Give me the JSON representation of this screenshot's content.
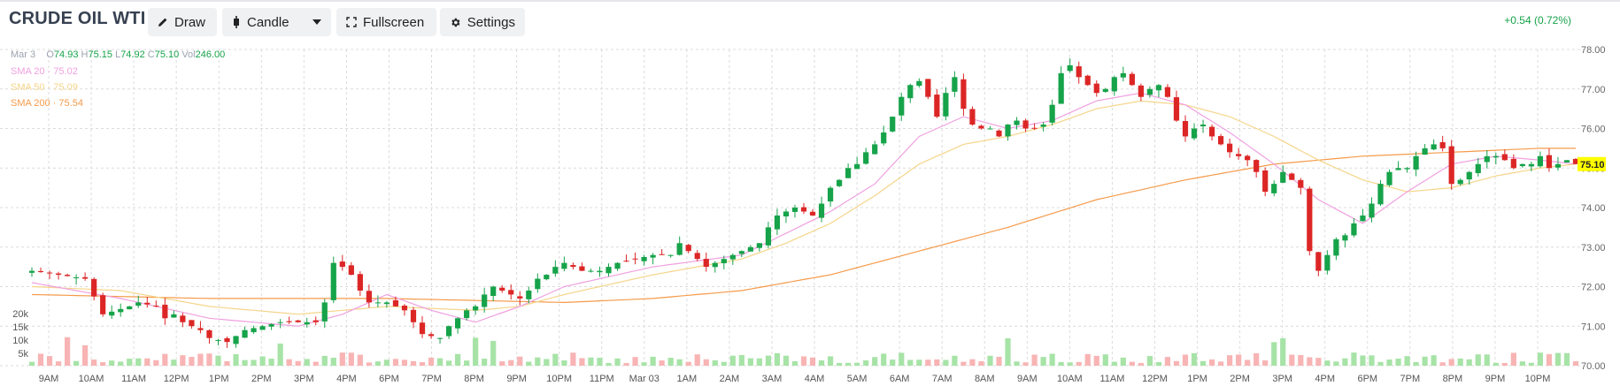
{
  "header": {
    "title": "CRUDE OIL WTI",
    "draw_label": "Draw",
    "candle_label": "Candle",
    "fullscreen_label": "Fullscreen",
    "settings_label": "Settings",
    "change": "+0.54 (0.72%)"
  },
  "legend": {
    "date": "Mar 3",
    "o_label": "O",
    "o": "74.93",
    "h_label": "H",
    "h": "75.15",
    "l_label": "L",
    "l": "74.92",
    "c_label": "C",
    "c": "75.10",
    "vol_label": "Vol",
    "vol": "246.00",
    "sma20": "SMA 20 · 75.02",
    "sma50": "SMA 50 · 75.09",
    "sma200": "SMA 200 · 75.54"
  },
  "colors": {
    "up": "#16a34a",
    "down": "#dc2626",
    "sma20": "#f0a0e0",
    "sma50": "#f5d58a",
    "sma200": "#f59a4a",
    "vol_up": "#a7e3a7",
    "vol_down": "#f8b4b4",
    "last_price_bg": "#ffff00"
  },
  "chart_data": {
    "type": "candlestick",
    "y_ticks": [
      "78.00",
      "77.00",
      "76.00",
      "75.00",
      "74.00",
      "73.00",
      "72.00",
      "71.00",
      "70.00"
    ],
    "ylim": [
      70.0,
      78.0
    ],
    "last_price": "75.10",
    "volume_ticks": [
      "20k",
      "15k",
      "10k",
      "5k"
    ],
    "x_ticks": [
      "9AM",
      "10AM",
      "11AM",
      "12PM",
      "1PM",
      "2PM",
      "3PM",
      "4PM",
      "6PM",
      "7PM",
      "8PM",
      "9PM",
      "10PM",
      "11PM",
      "Mar 03",
      "1AM",
      "2AM",
      "3AM",
      "4AM",
      "5AM",
      "6AM",
      "7AM",
      "8AM",
      "9AM",
      "10AM",
      "11AM",
      "12PM",
      "1PM",
      "2PM",
      "3PM",
      "4PM",
      "6PM",
      "7PM",
      "8PM",
      "9PM",
      "10PM"
    ],
    "close_path": [
      [
        0,
        72.4
      ],
      [
        6,
        72.2
      ],
      [
        8,
        71.3
      ],
      [
        11,
        71.5
      ],
      [
        12,
        71.6
      ],
      [
        14,
        71.5
      ],
      [
        15,
        71.2
      ],
      [
        16,
        71.3
      ],
      [
        17,
        71.1
      ],
      [
        19,
        70.9
      ],
      [
        20,
        70.7
      ],
      [
        22,
        70.6
      ],
      [
        24,
        70.9
      ],
      [
        26,
        71.0
      ],
      [
        28,
        71.1
      ],
      [
        30,
        71.1
      ],
      [
        32,
        71.1
      ],
      [
        33,
        71.6
      ],
      [
        34,
        72.6
      ],
      [
        35,
        72.5
      ],
      [
        36,
        72.3
      ],
      [
        37,
        71.9
      ],
      [
        38,
        71.6
      ],
      [
        40,
        71.6
      ],
      [
        42,
        71.4
      ],
      [
        43,
        71.1
      ],
      [
        44,
        70.8
      ],
      [
        46,
        70.7
      ],
      [
        47,
        71.0
      ],
      [
        48,
        71.2
      ],
      [
        49,
        71.4
      ],
      [
        50,
        71.5
      ],
      [
        51,
        71.8
      ],
      [
        52,
        72.0
      ],
      [
        53,
        71.9
      ],
      [
        54,
        71.8
      ],
      [
        55,
        71.7
      ],
      [
        56,
        71.9
      ],
      [
        57,
        72.2
      ],
      [
        58,
        72.3
      ],
      [
        59,
        72.5
      ],
      [
        60,
        72.6
      ],
      [
        62,
        72.4
      ],
      [
        64,
        72.4
      ],
      [
        66,
        72.6
      ],
      [
        68,
        72.7
      ],
      [
        70,
        72.8
      ],
      [
        72,
        72.8
      ],
      [
        73,
        73.1
      ],
      [
        74,
        72.9
      ],
      [
        75,
        72.7
      ],
      [
        76,
        72.5
      ],
      [
        77,
        72.6
      ],
      [
        78,
        72.7
      ],
      [
        80,
        72.9
      ],
      [
        82,
        73.1
      ],
      [
        83,
        73.5
      ],
      [
        84,
        73.8
      ],
      [
        86,
        74.0
      ],
      [
        87,
        73.9
      ],
      [
        88,
        73.8
      ],
      [
        89,
        74.1
      ],
      [
        90,
        74.5
      ],
      [
        91,
        74.7
      ],
      [
        92,
        75.0
      ],
      [
        93,
        75.1
      ],
      [
        94,
        75.4
      ],
      [
        95,
        75.6
      ],
      [
        96,
        75.9
      ],
      [
        97,
        76.3
      ],
      [
        98,
        76.8
      ],
      [
        99,
        77.1
      ],
      [
        100,
        77.2
      ],
      [
        101,
        76.8
      ],
      [
        102,
        76.3
      ],
      [
        103,
        76.9
      ],
      [
        104,
        77.3
      ],
      [
        105,
        76.5
      ],
      [
        106,
        76.1
      ],
      [
        107,
        76.0
      ],
      [
        108,
        76.0
      ],
      [
        109,
        75.8
      ],
      [
        110,
        76.1
      ],
      [
        111,
        76.2
      ],
      [
        112,
        76.0
      ],
      [
        113,
        76.0
      ],
      [
        114,
        76.1
      ],
      [
        115,
        76.6
      ],
      [
        116,
        77.4
      ],
      [
        117,
        77.6
      ],
      [
        118,
        77.3
      ],
      [
        119,
        77.1
      ],
      [
        120,
        76.9
      ],
      [
        121,
        77.0
      ],
      [
        122,
        77.3
      ],
      [
        123,
        77.4
      ],
      [
        124,
        77.1
      ],
      [
        125,
        76.8
      ],
      [
        126,
        77.0
      ],
      [
        127,
        77.1
      ],
      [
        128,
        76.8
      ],
      [
        129,
        76.2
      ],
      [
        130,
        75.8
      ],
      [
        131,
        76.0
      ],
      [
        132,
        76.1
      ],
      [
        133,
        75.8
      ],
      [
        134,
        75.6
      ],
      [
        135,
        75.4
      ],
      [
        136,
        75.3
      ],
      [
        137,
        75.2
      ],
      [
        138,
        74.9
      ],
      [
        139,
        74.4
      ],
      [
        140,
        74.6
      ],
      [
        141,
        74.9
      ],
      [
        142,
        74.7
      ],
      [
        143,
        74.5
      ],
      [
        144,
        72.9
      ],
      [
        145,
        72.4
      ],
      [
        146,
        72.8
      ],
      [
        147,
        73.2
      ],
      [
        148,
        73.3
      ],
      [
        149,
        73.6
      ],
      [
        150,
        73.8
      ],
      [
        151,
        74.1
      ],
      [
        152,
        74.6
      ],
      [
        153,
        74.9
      ],
      [
        154,
        75.0
      ],
      [
        155,
        75.0
      ],
      [
        156,
        75.3
      ],
      [
        157,
        75.5
      ],
      [
        158,
        75.6
      ],
      [
        159,
        75.5
      ],
      [
        160,
        74.6
      ],
      [
        161,
        74.7
      ],
      [
        162,
        74.9
      ],
      [
        163,
        75.1
      ],
      [
        164,
        75.3
      ],
      [
        165,
        75.3
      ],
      [
        166,
        75.2
      ],
      [
        167,
        75.0
      ],
      [
        168,
        75.1
      ],
      [
        169,
        75.1
      ],
      [
        170,
        75.3
      ],
      [
        171,
        75.0
      ],
      [
        172,
        75.1
      ],
      [
        173,
        75.2
      ],
      [
        174,
        75.1
      ]
    ],
    "sma20_path": [
      [
        0,
        72.1
      ],
      [
        10,
        71.7
      ],
      [
        20,
        71.2
      ],
      [
        30,
        71.0
      ],
      [
        35,
        71.3
      ],
      [
        40,
        71.8
      ],
      [
        45,
        71.4
      ],
      [
        50,
        71.1
      ],
      [
        55,
        71.5
      ],
      [
        60,
        72.0
      ],
      [
        70,
        72.5
      ],
      [
        80,
        72.8
      ],
      [
        90,
        73.9
      ],
      [
        95,
        74.6
      ],
      [
        100,
        75.8
      ],
      [
        105,
        76.3
      ],
      [
        110,
        76.0
      ],
      [
        115,
        76.2
      ],
      [
        120,
        76.7
      ],
      [
        125,
        76.9
      ],
      [
        130,
        76.6
      ],
      [
        135,
        75.9
      ],
      [
        140,
        75.1
      ],
      [
        145,
        74.2
      ],
      [
        150,
        73.6
      ],
      [
        155,
        74.4
      ],
      [
        160,
        75.1
      ],
      [
        165,
        75.3
      ],
      [
        170,
        75.2
      ],
      [
        174,
        75.1
      ]
    ],
    "sma50_path": [
      [
        0,
        72.0
      ],
      [
        10,
        71.9
      ],
      [
        20,
        71.5
      ],
      [
        30,
        71.3
      ],
      [
        40,
        71.5
      ],
      [
        50,
        71.4
      ],
      [
        55,
        71.5
      ],
      [
        60,
        71.8
      ],
      [
        70,
        72.3
      ],
      [
        80,
        72.7
      ],
      [
        85,
        73.1
      ],
      [
        90,
        73.6
      ],
      [
        95,
        74.3
      ],
      [
        100,
        75.1
      ],
      [
        105,
        75.6
      ],
      [
        110,
        75.8
      ],
      [
        115,
        76.1
      ],
      [
        120,
        76.5
      ],
      [
        125,
        76.7
      ],
      [
        130,
        76.6
      ],
      [
        135,
        76.3
      ],
      [
        140,
        75.8
      ],
      [
        145,
        75.2
      ],
      [
        150,
        74.7
      ],
      [
        155,
        74.4
      ],
      [
        160,
        74.5
      ],
      [
        165,
        74.8
      ],
      [
        170,
        75.0
      ],
      [
        174,
        75.1
      ]
    ],
    "sma200_path": [
      [
        0,
        71.8
      ],
      [
        20,
        71.7
      ],
      [
        40,
        71.7
      ],
      [
        60,
        71.6
      ],
      [
        70,
        71.7
      ],
      [
        80,
        71.9
      ],
      [
        90,
        72.3
      ],
      [
        100,
        72.9
      ],
      [
        110,
        73.5
      ],
      [
        120,
        74.2
      ],
      [
        130,
        74.7
      ],
      [
        140,
        75.1
      ],
      [
        150,
        75.3
      ],
      [
        160,
        75.4
      ],
      [
        170,
        75.5
      ],
      [
        174,
        75.5
      ]
    ]
  }
}
